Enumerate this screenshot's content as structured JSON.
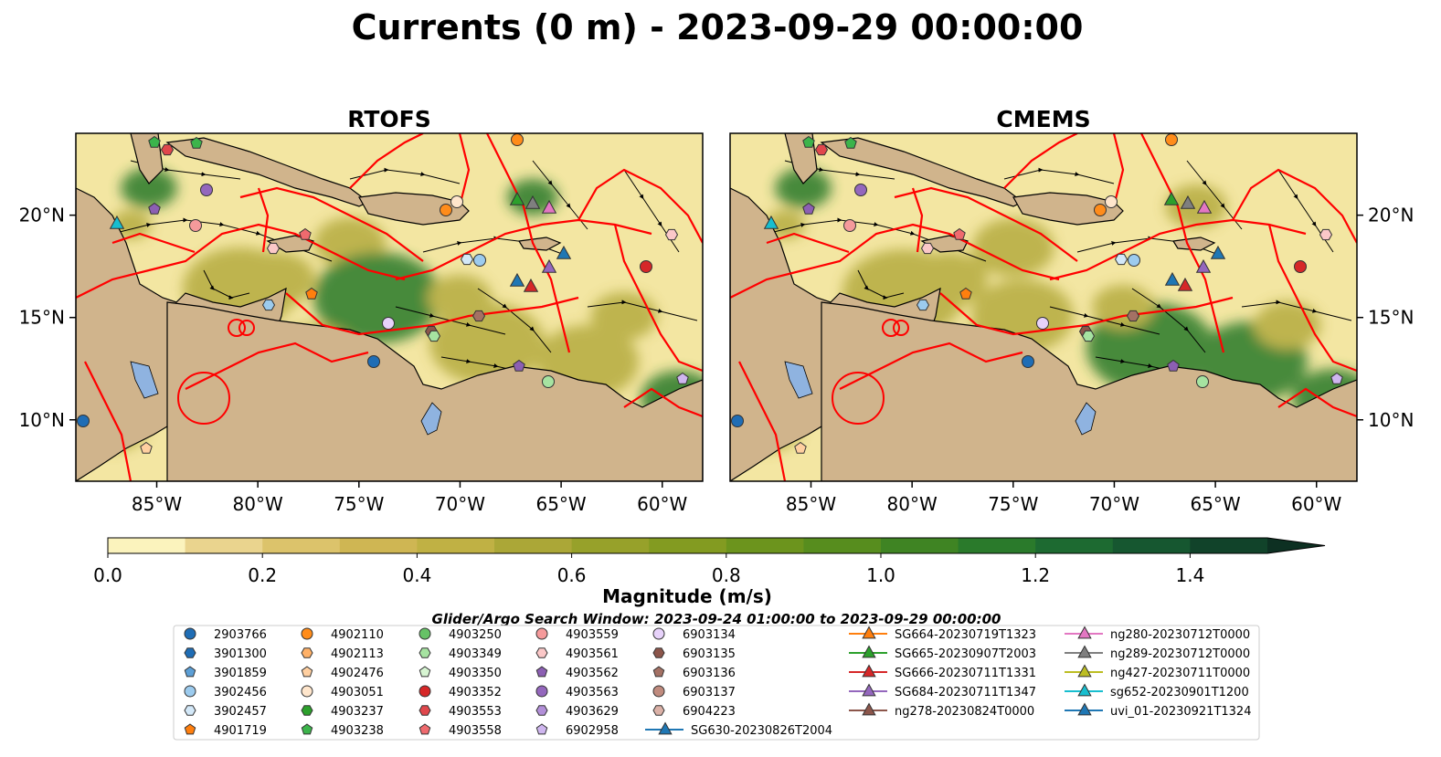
{
  "figure": {
    "title": "Currents (0 m) - 2023-09-29 00:00:00",
    "search_window": "Glider/Argo Search Window: 2023-09-24 01:00:00 to 2023-09-29 00:00:00"
  },
  "chart_data": [
    {
      "type": "heatmap",
      "panel": "RTOFS",
      "title": "RTOFS",
      "xlim": [
        -89,
        -58
      ],
      "ylim": [
        7,
        24
      ],
      "xticks": [
        -85,
        -80,
        -75,
        -70,
        -65,
        -60
      ],
      "xtick_labels": [
        "85°W",
        "80°W",
        "75°W",
        "70°W",
        "65°W",
        "60°W"
      ],
      "yticks": [
        10,
        15,
        20
      ],
      "ytick_labels": [
        "10°N",
        "15°N",
        "20°N"
      ],
      "ytick_side": "left",
      "variable": "current magnitude with streamlines"
    },
    {
      "type": "heatmap",
      "panel": "CMEMS",
      "title": "CMEMS",
      "xlim": [
        -89,
        -58
      ],
      "ylim": [
        7,
        24
      ],
      "xticks": [
        -85,
        -80,
        -75,
        -70,
        -65,
        -60
      ],
      "xtick_labels": [
        "85°W",
        "80°W",
        "75°W",
        "70°W",
        "65°W",
        "60°W"
      ],
      "yticks": [
        10,
        15,
        20
      ],
      "ytick_labels": [
        "10°N",
        "15°N",
        "20°N"
      ],
      "ytick_side": "right",
      "variable": "current magnitude with streamlines"
    }
  ],
  "colorbar": {
    "label": "Magnitude (m/s)",
    "min": 0.0,
    "max": 1.5,
    "extend": "max",
    "ticks": [
      0.0,
      0.2,
      0.4,
      0.6,
      0.8,
      1.0,
      1.2,
      1.4
    ],
    "tick_labels": [
      "0.0",
      "0.2",
      "0.4",
      "0.6",
      "0.8",
      "1.0",
      "1.2",
      "1.4"
    ],
    "colors": [
      "#fbf3bd",
      "#ead48e",
      "#dcc36b",
      "#cfb653",
      "#c0b144",
      "#aba737",
      "#97a12a",
      "#839b21",
      "#6c941d",
      "#578d1e",
      "#3f8423",
      "#2a7a2b",
      "#1d6a31",
      "#165730",
      "#11432a",
      "#0d3022"
    ]
  },
  "map_colors": {
    "ocean_low": "#f3e6a2",
    "ocean_mid": "#b5ac3f",
    "ocean_high": "#2a7a2b",
    "land": "#d0b48c",
    "lake": "#8fb3e0",
    "boundary": "#ff0000",
    "streamline": "#000000"
  },
  "legend": {
    "argo_columns": [
      [
        {
          "id": "2903766",
          "marker": "circle",
          "color": "#1f6db5"
        },
        {
          "id": "3901300",
          "marker": "hexagon",
          "color": "#1f6db5"
        },
        {
          "id": "3901859",
          "marker": "pentagon",
          "color": "#5c9fd6"
        },
        {
          "id": "3902456",
          "marker": "circle",
          "color": "#9ccbee"
        },
        {
          "id": "3902457",
          "marker": "hexagon",
          "color": "#d3e8f8"
        },
        {
          "id": "4901719",
          "marker": "pentagon",
          "color": "#ff7f0e"
        }
      ],
      [
        {
          "id": "4902110",
          "marker": "circle",
          "color": "#ff8c1a"
        },
        {
          "id": "4902113",
          "marker": "hexagon",
          "color": "#ffb168"
        },
        {
          "id": "4902476",
          "marker": "pentagon",
          "color": "#ffcfa0"
        },
        {
          "id": "4903051",
          "marker": "circle",
          "color": "#ffe6cc"
        },
        {
          "id": "4903237",
          "marker": "hexagon",
          "color": "#2ca02c"
        },
        {
          "id": "4903238",
          "marker": "pentagon",
          "color": "#3cb44b"
        }
      ],
      [
        {
          "id": "4903250",
          "marker": "circle",
          "color": "#66c266"
        },
        {
          "id": "4903349",
          "marker": "hexagon",
          "color": "#a6e3a1"
        },
        {
          "id": "4903350",
          "marker": "pentagon",
          "color": "#d7f5d2"
        },
        {
          "id": "4903352",
          "marker": "circle",
          "color": "#d62728"
        },
        {
          "id": "4903553",
          "marker": "hexagon",
          "color": "#e0474c"
        },
        {
          "id": "4903558",
          "marker": "pentagon",
          "color": "#ef6a6e"
        }
      ],
      [
        {
          "id": "4903559",
          "marker": "circle",
          "color": "#f59a9b"
        },
        {
          "id": "4903561",
          "marker": "hexagon",
          "color": "#fbc8c8"
        },
        {
          "id": "4903562",
          "marker": "pentagon",
          "color": "#8c5fb3"
        },
        {
          "id": "4903563",
          "marker": "circle",
          "color": "#9467bd"
        },
        {
          "id": "4903629",
          "marker": "hexagon",
          "color": "#b28fd8"
        },
        {
          "id": "6902958",
          "marker": "pentagon",
          "color": "#cfb6ef"
        }
      ],
      [
        {
          "id": "6903134",
          "marker": "circle",
          "color": "#e7d2fa"
        },
        {
          "id": "6903135",
          "marker": "hexagon",
          "color": "#8c564b"
        },
        {
          "id": "6903136",
          "marker": "pentagon",
          "color": "#a47164"
        },
        {
          "id": "6903137",
          "marker": "circle",
          "color": "#c08b7e"
        },
        {
          "id": "6904223",
          "marker": "hexagon",
          "color": "#dbb1a7"
        }
      ]
    ],
    "glider_columns": [
      [
        {
          "id": "SG630-20230826T2004",
          "color": "#1f77b4"
        }
      ],
      [
        {
          "id": "SG664-20230719T1323",
          "color": "#ff7f0e"
        },
        {
          "id": "SG665-20230907T2003",
          "color": "#2ca02c"
        },
        {
          "id": "SG666-20230711T1331",
          "color": "#d62728"
        },
        {
          "id": "SG684-20230711T1347",
          "color": "#9467bd"
        },
        {
          "id": "ng278-20230824T0000",
          "color": "#8c564b"
        }
      ],
      [
        {
          "id": "ng280-20230712T0000",
          "color": "#e377c2"
        },
        {
          "id": "ng289-20230712T0000",
          "color": "#7f7f7f"
        },
        {
          "id": "ng427-20230711T0000",
          "color": "#bcbd22"
        },
        {
          "id": "sg652-20230901T1200",
          "color": "#17becf"
        },
        {
          "id": "uvi_01-20230921T1324",
          "color": "#1f77b4"
        }
      ]
    ]
  }
}
